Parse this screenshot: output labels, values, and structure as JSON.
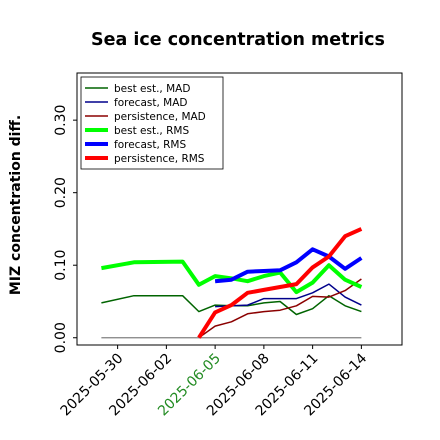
{
  "chart_data": {
    "type": "line",
    "title": "Sea ice concentration metrics",
    "xlabel": "",
    "ylabel": "MIZ concentration diff.",
    "ylim": [
      -0.01,
      0.365
    ],
    "yticks": [
      0.0,
      0.1,
      0.2,
      0.3
    ],
    "ytick_labels": [
      "0.00",
      "0.10",
      "0.20",
      "0.30"
    ],
    "xlim": [
      "2025-05-27T12",
      "2025-06-16T12"
    ],
    "xticks": [
      "2025-05-30",
      "2025-06-02",
      "2025-06-05",
      "2025-06-08",
      "2025-06-11",
      "2025-06-14"
    ],
    "xtick_colors": [
      "#000000",
      "#000000",
      "#228b22",
      "#000000",
      "#000000",
      "#000000"
    ],
    "legend_position": "upper left",
    "grid": false,
    "zero_line": {
      "y": 0.0,
      "color": "#808080"
    },
    "series": [
      {
        "name": "best est., MAD",
        "color": "#006400",
        "width": 1.5,
        "x": [
          "2025-05-29",
          "2025-05-31",
          "2025-06-03",
          "2025-06-04",
          "2025-06-05",
          "2025-06-06",
          "2025-06-07",
          "2025-06-08",
          "2025-06-09",
          "2025-06-10",
          "2025-06-11",
          "2025-06-12",
          "2025-06-13",
          "2025-06-14"
        ],
        "values": [
          0.048,
          0.058,
          0.058,
          0.036,
          0.045,
          0.044,
          0.044,
          0.048,
          0.05,
          0.032,
          0.04,
          0.058,
          0.044,
          0.036
        ]
      },
      {
        "name": "forecast, MAD",
        "color": "#00008b",
        "width": 1.5,
        "x": [
          "2025-06-05",
          "2025-06-06",
          "2025-06-07",
          "2025-06-08",
          "2025-06-09",
          "2025-06-10",
          "2025-06-11",
          "2025-06-12",
          "2025-06-13",
          "2025-06-14"
        ],
        "values": [
          0.043,
          0.044,
          0.045,
          0.054,
          0.054,
          0.054,
          0.062,
          0.074,
          0.056,
          0.045
        ]
      },
      {
        "name": "persistence, MAD",
        "color": "#8b0000",
        "width": 1.5,
        "x": [
          "2025-06-04",
          "2025-06-05",
          "2025-06-06",
          "2025-06-07",
          "2025-06-08",
          "2025-06-09",
          "2025-06-10",
          "2025-06-11",
          "2025-06-12",
          "2025-06-13",
          "2025-06-14"
        ],
        "values": [
          0.0,
          0.016,
          0.022,
          0.033,
          0.036,
          0.038,
          0.044,
          0.057,
          0.056,
          0.065,
          0.081
        ]
      },
      {
        "name": "best est., RMS",
        "color": "#00ff00",
        "width": 4,
        "x": [
          "2025-05-29",
          "2025-05-31",
          "2025-06-03",
          "2025-06-04",
          "2025-06-05",
          "2025-06-06",
          "2025-06-07",
          "2025-06-08",
          "2025-06-09",
          "2025-06-10",
          "2025-06-11",
          "2025-06-12",
          "2025-06-13",
          "2025-06-14"
        ],
        "values": [
          0.096,
          0.104,
          0.105,
          0.073,
          0.085,
          0.082,
          0.078,
          0.085,
          0.09,
          0.063,
          0.076,
          0.1,
          0.08,
          0.07
        ]
      },
      {
        "name": "forecast, RMS",
        "color": "#0000ff",
        "width": 4,
        "x": [
          "2025-06-05",
          "2025-06-06",
          "2025-06-07",
          "2025-06-08",
          "2025-06-09",
          "2025-06-10",
          "2025-06-11",
          "2025-06-12",
          "2025-06-13",
          "2025-06-14"
        ],
        "values": [
          0.078,
          0.08,
          0.091,
          0.092,
          0.093,
          0.104,
          0.122,
          0.112,
          0.095,
          0.11
        ]
      },
      {
        "name": "persistence, RMS",
        "color": "#ff0000",
        "width": 4,
        "x": [
          "2025-06-04",
          "2025-06-05",
          "2025-06-06",
          "2025-06-07",
          "2025-06-08",
          "2025-06-09",
          "2025-06-10",
          "2025-06-11",
          "2025-06-12",
          "2025-06-13",
          "2025-06-14"
        ],
        "values": [
          0.0,
          0.035,
          0.045,
          0.062,
          0.066,
          0.07,
          0.074,
          0.097,
          0.112,
          0.14,
          0.15
        ]
      }
    ]
  }
}
